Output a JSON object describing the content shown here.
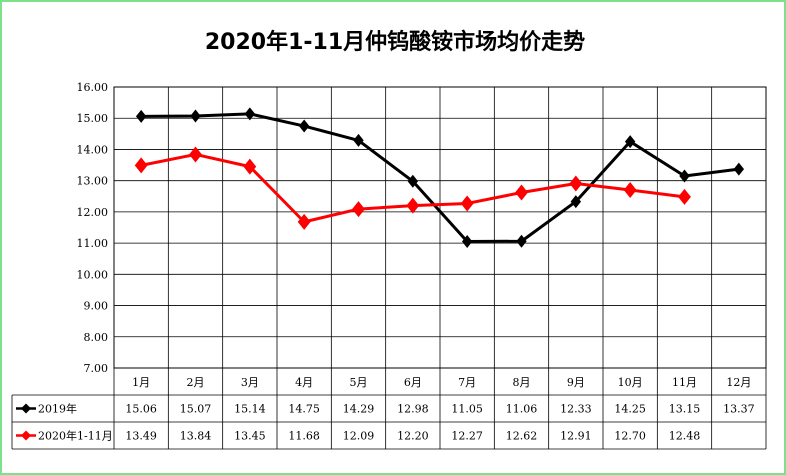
{
  "chart_data": {
    "type": "line",
    "title": "2020年1-11月仲钨酸铵市场均价走势",
    "categories": [
      "1月",
      "2月",
      "3月",
      "4月",
      "5月",
      "6月",
      "7月",
      "8月",
      "9月",
      "10月",
      "11月",
      "12月"
    ],
    "ylim": [
      7.0,
      16.0
    ],
    "yticks": [
      "7.00",
      "8.00",
      "9.00",
      "10.00",
      "11.00",
      "12.00",
      "13.00",
      "14.00",
      "15.00",
      "16.00"
    ],
    "grid": true,
    "legend": "data-table-left",
    "series": [
      {
        "name": "2019年",
        "color": "#000000",
        "values": [
          15.06,
          15.07,
          15.14,
          14.75,
          14.29,
          12.98,
          11.05,
          11.06,
          12.33,
          14.25,
          13.15,
          13.37
        ],
        "labels": [
          "15.06",
          "15.07",
          "15.14",
          "14.75",
          "14.29",
          "12.98",
          "11.05",
          "11.06",
          "12.33",
          "14.25",
          "13.15",
          "13.37"
        ]
      },
      {
        "name": "2020年1-11月",
        "color": "#ff0000",
        "values": [
          13.49,
          13.84,
          13.45,
          11.68,
          12.09,
          12.2,
          12.27,
          12.62,
          12.91,
          12.7,
          12.48,
          null
        ],
        "labels": [
          "13.49",
          "13.84",
          "13.45",
          "11.68",
          "12.09",
          "12.20",
          "12.27",
          "12.62",
          "12.91",
          "12.70",
          "12.48",
          ""
        ]
      }
    ]
  }
}
